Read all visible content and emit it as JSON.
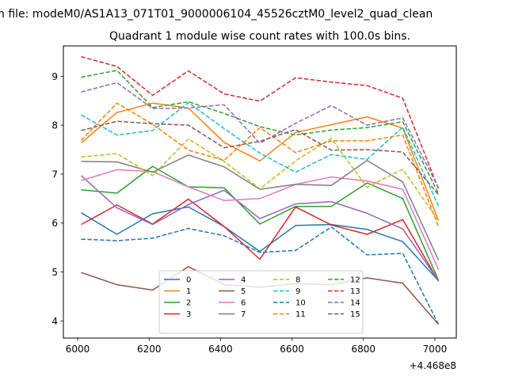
{
  "figure": {
    "suptitle": "n file: modeM0/AS1A13_071T01_9000006104_45526cztM0_level2_quad_clean",
    "offset_label": "+4.468e8"
  },
  "chart_data": {
    "type": "line",
    "title": "Quadrant 1 module wise count rates with 100.0s bins.",
    "xlabel": "",
    "ylabel": "",
    "x": [
      6010,
      6110,
      6210,
      6310,
      6410,
      6510,
      6610,
      6710,
      6810,
      6910,
      7010
    ],
    "xlim": [
      5960,
      7060
    ],
    "ylim": [
      3.65,
      9.62
    ],
    "x_ticks": [
      6000,
      6200,
      6400,
      6600,
      6800,
      7000
    ],
    "x_tick_labels": [
      "6000",
      "6200",
      "6400",
      "6600",
      "6800",
      "7000"
    ],
    "y_ticks": [
      4,
      5,
      6,
      7,
      8,
      9
    ],
    "y_tick_labels": [
      "4",
      "5",
      "6",
      "7",
      "8",
      "9"
    ],
    "grid": false,
    "legend_position": "lower center",
    "legend_columns": 4,
    "series": [
      {
        "name": "0",
        "color": "#1f77b4",
        "dash": "solid",
        "values": [
          6.21,
          5.77,
          6.19,
          6.33,
          5.93,
          5.42,
          5.95,
          5.97,
          5.87,
          5.62,
          4.82
        ]
      },
      {
        "name": "1",
        "color": "#ff7f0e",
        "dash": "solid",
        "values": [
          7.64,
          8.26,
          8.45,
          8.35,
          7.65,
          7.27,
          7.85,
          8.01,
          8.17,
          7.94,
          6.05
        ]
      },
      {
        "name": "2",
        "color": "#2ca02c",
        "dash": "solid",
        "values": [
          6.68,
          6.61,
          7.16,
          6.74,
          6.72,
          5.98,
          6.34,
          6.34,
          6.82,
          6.5,
          4.83
        ]
      },
      {
        "name": "3",
        "color": "#d62728",
        "dash": "solid",
        "values": [
          5.97,
          6.37,
          5.98,
          6.49,
          5.93,
          5.26,
          6.33,
          5.96,
          5.77,
          6.07,
          4.81
        ]
      },
      {
        "name": "4",
        "color": "#9467bd",
        "dash": "solid",
        "values": [
          6.97,
          6.31,
          5.97,
          6.38,
          6.67,
          6.09,
          6.39,
          6.44,
          6.2,
          5.88,
          4.82
        ]
      },
      {
        "name": "5",
        "color": "#8c564b",
        "dash": "solid",
        "values": [
          4.99,
          4.74,
          4.63,
          5.11,
          4.74,
          4.69,
          4.76,
          4.74,
          4.88,
          4.77,
          3.93
        ]
      },
      {
        "name": "6",
        "color": "#e377c2",
        "dash": "solid",
        "values": [
          6.87,
          7.09,
          7.05,
          6.74,
          6.46,
          6.5,
          6.79,
          6.94,
          6.86,
          6.69,
          5.05
        ]
      },
      {
        "name": "7",
        "color": "#7f7f7f",
        "dash": "solid",
        "values": [
          7.26,
          7.25,
          7.04,
          7.39,
          7.15,
          6.69,
          6.79,
          6.77,
          7.28,
          6.84,
          5.24
        ]
      },
      {
        "name": "8",
        "color": "#bcbd22",
        "dash": "dashed",
        "values": [
          7.35,
          7.42,
          6.97,
          7.72,
          7.26,
          6.7,
          7.27,
          7.73,
          6.73,
          7.1,
          6.05
        ]
      },
      {
        "name": "9",
        "color": "#17becf",
        "dash": "dashed",
        "values": [
          8.21,
          7.8,
          7.89,
          8.46,
          7.93,
          7.43,
          7.04,
          7.4,
          7.3,
          7.96,
          6.35
        ]
      },
      {
        "name": "10",
        "color": "#1f77b4",
        "dash": "dashed",
        "values": [
          5.67,
          5.64,
          5.69,
          5.89,
          5.74,
          5.4,
          5.44,
          5.92,
          5.35,
          5.38,
          3.93
        ]
      },
      {
        "name": "11",
        "color": "#ff7f0e",
        "dash": "dashed",
        "values": [
          7.69,
          8.45,
          8.02,
          7.49,
          7.28,
          7.95,
          7.44,
          7.68,
          7.68,
          7.8,
          5.93
        ]
      },
      {
        "name": "12",
        "color": "#2ca02c",
        "dash": "dashed",
        "values": [
          8.98,
          9.12,
          8.36,
          8.48,
          8.24,
          7.97,
          7.8,
          7.9,
          7.95,
          8.07,
          6.6
        ]
      },
      {
        "name": "13",
        "color": "#d62728",
        "dash": "dashed",
        "values": [
          9.4,
          9.2,
          8.61,
          9.11,
          8.64,
          8.49,
          8.97,
          8.88,
          8.81,
          8.55,
          6.7
        ]
      },
      {
        "name": "14",
        "color": "#9467bd",
        "dash": "dashed",
        "values": [
          8.68,
          8.87,
          8.34,
          8.35,
          8.42,
          7.63,
          8.04,
          8.4,
          8.0,
          8.15,
          6.72
        ]
      },
      {
        "name": "15",
        "color": "#8c564b",
        "dash": "dashed",
        "values": [
          7.89,
          8.08,
          8.03,
          8.0,
          7.54,
          7.67,
          7.91,
          7.49,
          7.5,
          7.45,
          6.58
        ]
      }
    ]
  }
}
